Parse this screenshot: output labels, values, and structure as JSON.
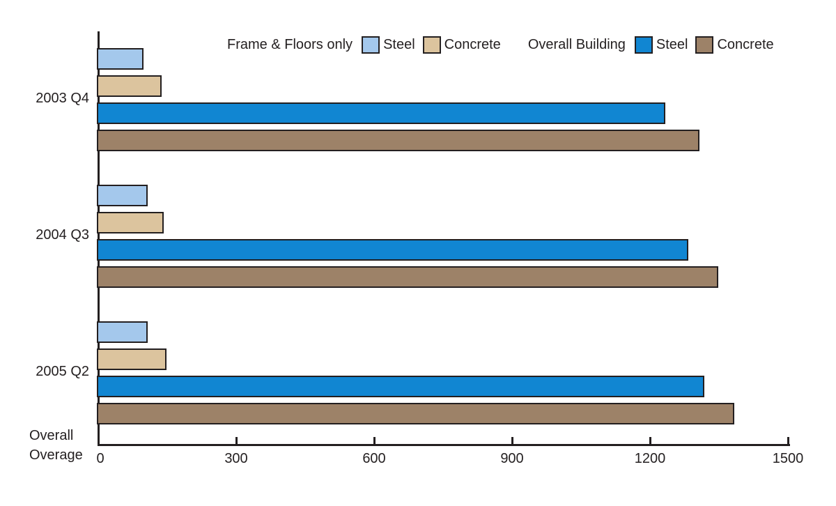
{
  "chart_data": {
    "type": "bar",
    "orientation": "horizontal",
    "title": "",
    "categories": [
      "2003 Q4",
      "2004 Q3",
      "2005 Q2"
    ],
    "series": [
      {
        "group": "Frame & Floors only",
        "name": "Steel",
        "color": "#a4c8ec",
        "values": [
          95,
          105,
          105
        ]
      },
      {
        "group": "Frame & Floors only",
        "name": "Concrete",
        "color": "#dcc49e",
        "values": [
          135,
          140,
          145
        ]
      },
      {
        "group": "Overall Building",
        "name": "Steel",
        "color": "#1186d2",
        "values": [
          1230,
          1280,
          1315
        ]
      },
      {
        "group": "Overall Building",
        "name": "Concrete",
        "color": "#9d8268",
        "values": [
          1305,
          1345,
          1380
        ]
      }
    ],
    "xlabel": "Overall\nOverage",
    "xlim": [
      0,
      1500
    ],
    "x_ticks": [
      "0",
      "300",
      "600",
      "900",
      "1200",
      "1500"
    ],
    "x_tick_values": [
      0,
      300,
      600,
      900,
      1200,
      1500
    ],
    "grid": false,
    "legend": {
      "position": "top",
      "groups": [
        {
          "label": "Frame & Floors only",
          "entries": [
            {
              "name": "Steel",
              "color": "#a4c8ec"
            },
            {
              "name": "Concrete",
              "color": "#dcc49e"
            }
          ]
        },
        {
          "label": "Overall Building",
          "entries": [
            {
              "name": "Steel",
              "color": "#1186d2"
            },
            {
              "name": "Concrete",
              "color": "#9d8268"
            }
          ]
        }
      ]
    },
    "colors": {
      "axis": "#231f20",
      "text": "#231f20",
      "frame_floors_steel": "#a4c8ec",
      "frame_floors_concrete": "#dcc49e",
      "overall_steel": "#1186d2",
      "overall_concrete": "#9d8268"
    }
  }
}
